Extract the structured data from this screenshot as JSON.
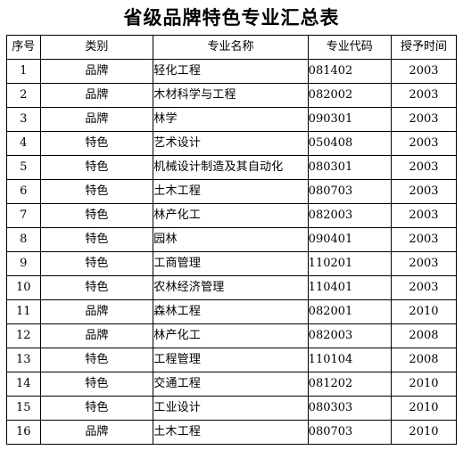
{
  "title": "省级品牌特色专业汇总表",
  "headers": [
    "序号",
    "类别",
    "专业名称",
    "专业代码",
    "授予时间"
  ],
  "rows": [
    [
      "1",
      "品牌",
      "轻化工程",
      "081402",
      "2003"
    ],
    [
      "2",
      "品牌",
      "木材科学与工程",
      "082002",
      "2003"
    ],
    [
      "3",
      "品牌",
      "林学",
      "090301",
      "2003"
    ],
    [
      "4",
      "特色",
      "艺术设计",
      "050408",
      "2003"
    ],
    [
      "5",
      "特色",
      "机械设计制造及其自动化",
      "080301",
      "2003"
    ],
    [
      "6",
      "特色",
      "土木工程",
      "080703",
      "2003"
    ],
    [
      "7",
      "特色",
      "林产化工",
      "082003",
      "2003"
    ],
    [
      "8",
      "特色",
      "园林",
      "090401",
      "2003"
    ],
    [
      "9",
      "特色",
      "工商管理",
      "110201",
      "2003"
    ],
    [
      "10",
      "特色",
      "农林经济管理",
      "110401",
      "2003"
    ],
    [
      "11",
      "品牌",
      "森林工程",
      "082001",
      "2010"
    ],
    [
      "12",
      "品牌",
      "林产化工",
      "082003",
      "2008"
    ],
    [
      "13",
      "特色",
      "工程管理",
      "110104",
      "2008"
    ],
    [
      "14",
      "特色",
      "交通工程",
      "081202",
      "2010"
    ],
    [
      "15",
      "特色",
      "工业设计",
      "080303",
      "2010"
    ],
    [
      "16",
      "品牌",
      "土木工程",
      "080703",
      "2010"
    ]
  ]
}
